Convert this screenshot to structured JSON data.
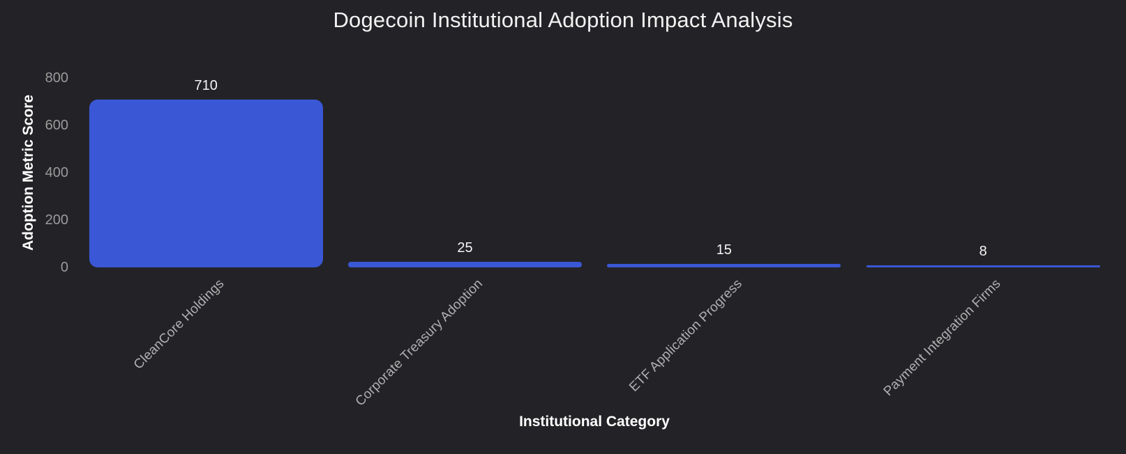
{
  "chart_data": {
    "type": "bar",
    "title": "Dogecoin Institutional Adoption Impact Analysis",
    "xlabel": "Institutional Category",
    "ylabel": "Adoption Metric Score",
    "categories": [
      "CleanCore Holdings",
      "Corporate Treasury Adoption",
      "ETF Application Progress",
      "Payment Integration Firms"
    ],
    "values": [
      710,
      25,
      15,
      8
    ],
    "value_labels": [
      "710",
      "25",
      "15",
      "8"
    ],
    "ylim": [
      0,
      800
    ],
    "yticks": [
      "0",
      "200",
      "400",
      "600",
      "800"
    ],
    "ytick_values": [
      0,
      200,
      400,
      600,
      800
    ],
    "grid": false,
    "legend": "none",
    "colors": {
      "background": "#232327",
      "bar": "#3a57d6",
      "tick_label": "#9b9b9b",
      "category_label": "#b0b0b0",
      "value_label": "#f5f5f5",
      "title": "#f2f2f2",
      "axis_title": "#ffffff"
    }
  }
}
